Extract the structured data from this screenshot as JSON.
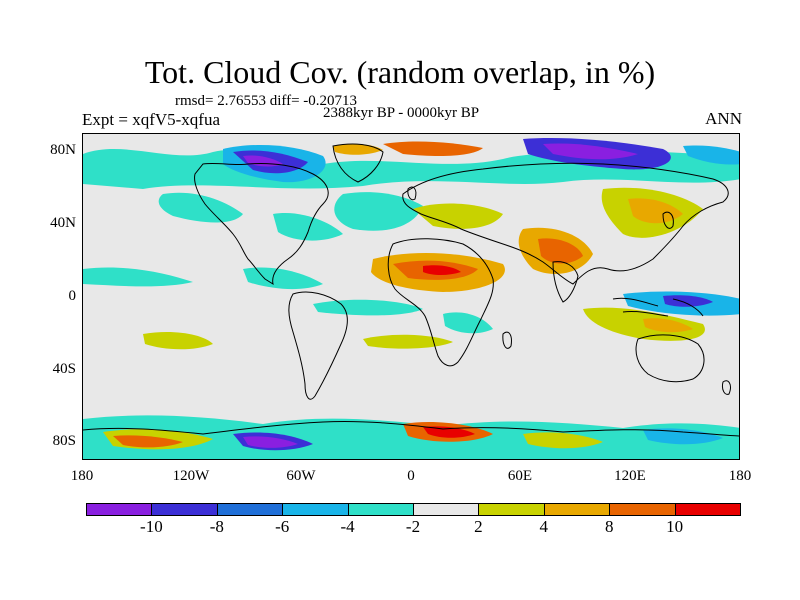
{
  "title": "Tot. Cloud Cov. (random overlap, in %)",
  "stats": "rmsd= 2.76553 diff= -0.20713",
  "period": "2388kyr BP - 0000kyr BP",
  "experiment": "Expt = xqfV5-xqfua",
  "season": "ANN",
  "map": {
    "projection": "cylindrical-equidistant",
    "lon_range": [
      -180,
      180
    ],
    "lat_range": [
      -90,
      90
    ],
    "background_color": "#e8e8e8",
    "y_tick_labels": [
      "80N",
      "40N",
      "0",
      "40S",
      "80S"
    ],
    "x_tick_labels": [
      "180",
      "120W",
      "60W",
      "0",
      "60E",
      "120E",
      "180"
    ]
  },
  "colorbar": {
    "labels": [
      "-10",
      "-8",
      "-6",
      "-4",
      "-2",
      "2",
      "4",
      "8",
      "10"
    ],
    "colors": [
      "#8a1fe0",
      "#3c2fd6",
      "#1f6fd8",
      "#19b4e8",
      "#2fe0c8",
      "#e8e8e8",
      "#c8d200",
      "#e8a800",
      "#e86400",
      "#e80000"
    ]
  }
}
